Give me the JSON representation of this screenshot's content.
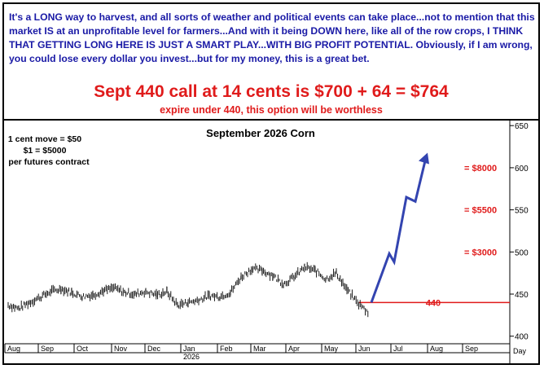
{
  "header": {
    "intro": "It's a LONG way to harvest, and all sorts of weather and political events can take place...not to mention that this market IS at an unprofitable level for farmers...And with it being DOWN here, like all of the row crops, I THINK THAT GETTING LONG HERE IS JUST A SMART PLAY...WITH BIG PROFIT POTENTIAL. Obviously, if I am wrong, you could lose every dollar you invest...but for my money, this is a great bet.",
    "headline": "Sept 440 call at 14 cents is $700 + 64 = $764",
    "subline": "expire under 440, this option will be worthless"
  },
  "colors": {
    "text_blue": "#1a1aa6",
    "red": "#e01b1b",
    "arrow_blue": "#3344b0",
    "price": "#000000"
  },
  "chart_data": {
    "type": "bar",
    "title": "September 2026 Corn",
    "notes": [
      "1 cent move = $50",
      "$1 = $5000",
      "per futures contract"
    ],
    "x_ticks": [
      "Aug",
      "Sep",
      "Oct",
      "Nov",
      "Dec",
      "Jan",
      "Feb",
      "Mar",
      "Apr",
      "May",
      "Jun",
      "Jul",
      "Aug",
      "Sep",
      "Day"
    ],
    "x_year_label": "2026",
    "y_ticks": [
      400,
      450,
      500,
      550,
      600,
      650
    ],
    "ylim": [
      392,
      656
    ],
    "strike_line": {
      "value": 440,
      "label": "440"
    },
    "price_annotations": [
      {
        "label": "= $3000",
        "price": 500
      },
      {
        "label": "= $5500",
        "price": 550
      },
      {
        "label": "= $8000",
        "price": 600
      }
    ],
    "price_path": [
      [
        "Aug",
        437
      ],
      [
        "Aug",
        433
      ],
      [
        "Aug",
        440
      ],
      [
        "Sep",
        446
      ],
      [
        "Sep",
        453
      ],
      [
        "Sep",
        456
      ],
      [
        "Oct",
        452
      ],
      [
        "Oct",
        447
      ],
      [
        "Oct",
        449
      ],
      [
        "Nov",
        454
      ],
      [
        "Nov",
        457
      ],
      [
        "Nov",
        452
      ],
      [
        "Dec",
        450
      ],
      [
        "Dec",
        453
      ],
      [
        "Dec",
        449
      ],
      [
        "Jan",
        453
      ],
      [
        "Jan",
        437
      ],
      [
        "Jan",
        440
      ],
      [
        "Feb",
        443
      ],
      [
        "Feb",
        448
      ],
      [
        "Feb",
        447
      ],
      [
        "Mar",
        452
      ],
      [
        "Mar",
        470
      ],
      [
        "Mar",
        480
      ],
      [
        "Mar",
        478
      ],
      [
        "Apr",
        472
      ],
      [
        "Apr",
        462
      ],
      [
        "Apr",
        470
      ],
      [
        "May",
        482
      ],
      [
        "May",
        478
      ],
      [
        "May",
        468
      ],
      [
        "May",
        475
      ],
      [
        "Jun",
        455
      ],
      [
        "Jun",
        440
      ],
      [
        "Jun",
        428
      ]
    ],
    "projection": [
      {
        "date": "Jun",
        "value": 440
      },
      {
        "date": "Jul",
        "value": 498
      },
      {
        "date": "Jul",
        "value": 488
      },
      {
        "date": "Jul",
        "value": 565
      },
      {
        "date": "Aug",
        "value": 560
      },
      {
        "date": "Aug",
        "value": 612
      }
    ]
  }
}
